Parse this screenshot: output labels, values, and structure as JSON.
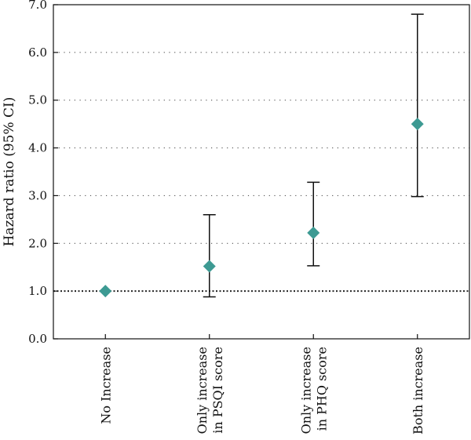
{
  "chart_data": {
    "type": "scatter",
    "ylabel": "Hazard ratio (95% CI)",
    "ylim": [
      0,
      7
    ],
    "yticks": [
      "0.0",
      "1.0",
      "2.0",
      "3.0",
      "4.0",
      "5.0",
      "6.0",
      "7.0"
    ],
    "grid": "horizontal dotted",
    "reference_line": 1.0,
    "marker": "diamond",
    "marker_color": "#3d9a93",
    "categories": [
      [
        "No Increase"
      ],
      [
        "Only increase",
        "in PSQI score"
      ],
      [
        "Only increase",
        "in PHQ score"
      ],
      [
        "Both increase"
      ]
    ],
    "points": [
      {
        "estimate": 1.0,
        "lower": null,
        "upper": null
      },
      {
        "estimate": 1.52,
        "lower": 0.88,
        "upper": 2.6
      },
      {
        "estimate": 2.22,
        "lower": 1.53,
        "upper": 3.28
      },
      {
        "estimate": 4.5,
        "lower": 2.98,
        "upper": 6.8
      }
    ]
  }
}
